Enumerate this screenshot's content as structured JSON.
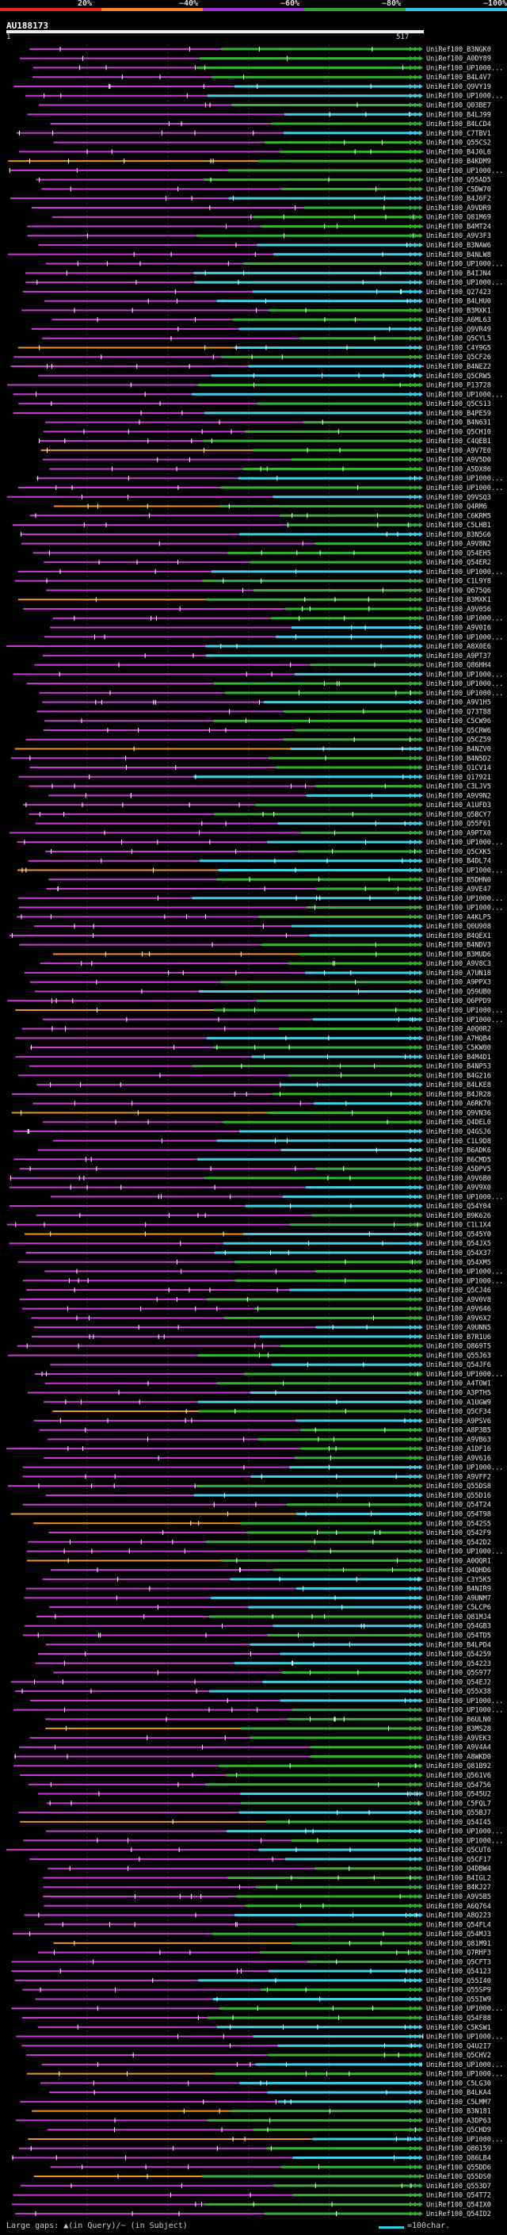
{
  "scale": {
    "labels": [
      "20%",
      "~40%",
      "~60%",
      "~80%",
      "~100%"
    ],
    "colors": [
      "#e8261f",
      "#f28a1b",
      "#9b32c9",
      "#27a33a",
      "#29c5e6"
    ]
  },
  "query": {
    "title": "AU188173",
    "start": "1",
    "end": "517"
  },
  "identity_colors": {
    "lt40": "#f0931f",
    "40_60": "#c93ad8",
    "60_80": "#33b32f",
    "gt80": "#3fd0e6"
  },
  "footer": {
    "gaps_label": "Large gaps: ▲(in Query)/~ (in Subject)",
    "scale_label": "=100char."
  },
  "hits": [
    "UniRef100_B3NGK0",
    "UniRef100_A0DY89",
    "UniRef100_UP1000...",
    "UniRef100_B4L4V7",
    "UniRef100_Q9VY19",
    "UniRef100_UP1000...",
    "UniRef100_Q03BE7",
    "UniRef100_B4LJ99",
    "UniRef100_B4LCD4",
    "UniRef100_C7TBV1",
    "UniRef100_Q55CS2",
    "UniRef100_B4J0L6",
    "UniRef100_B4KDM9",
    "UniRef100_UP1000...",
    "UniRef100_Q55AD5",
    "UniRef100_C5DW70",
    "UniRef100_B4J6F2",
    "UniRef100_A9VDR9",
    "UniRef100_Q81M69",
    "UniRef100_B4MT24",
    "UniRef100_A9V3F3",
    "UniRef100_B3NAW6",
    "UniRef100_B4NLW8",
    "UniRef100_UP1000...",
    "UniRef100_B4IJN4",
    "UniRef100_UP1000...",
    "UniRef100_Q27423",
    "UniRef100_B4LHU0",
    "UniRef100_B3MXK1",
    "UniRef100_A6ML63",
    "UniRef100_Q9VR49",
    "UniRef100_Q5CYL5",
    "UniRef100_C4Y9G5",
    "UniRef100_Q5CF26",
    "UniRef100_B4NEZ2",
    "UniRef100_Q5CRW5",
    "UniRef100_P13728",
    "UniRef100_UP1000...",
    "UniRef100_Q5CS13",
    "UniRef100_B4PE59",
    "UniRef100_B4N631",
    "UniRef100_Q5CH10",
    "UniRef100_C4QEB1",
    "UniRef100_A9V7E0",
    "UniRef100_A9V5D0",
    "UniRef100_A5DX86",
    "UniRef100_UP1000...",
    "UniRef100_UP1000...",
    "UniRef100_Q9VSQ3",
    "UniRef100_Q4RM6",
    "UniRef100_C6KRM5",
    "UniRef100_C5LHB1",
    "UniRef100_B3N5G6",
    "UniRef100_A9V8N2",
    "UniRef100_Q54EH5",
    "UniRef100_Q54ER2",
    "UniRef100_UP1000...",
    "UniRef100_C1L9Y8",
    "UniRef100_Q675Q6",
    "UniRef100_B3MXK1",
    "UniRef100_A9V056",
    "UniRef100_UP1000...",
    "UniRef100_A9V0I6",
    "UniRef100_UP1000...",
    "UniRef100_A8X0E6",
    "UniRef100_A9PT37",
    "UniRef100_Q86HH4",
    "UniRef100_UP1000...",
    "UniRef100_UP1000...",
    "UniRef100_UP1000...",
    "UniRef100_A9V1H5",
    "UniRef100_Q73T88",
    "UniRef100_C5CW96",
    "UniRef100_Q5CRW6",
    "UniRef100_Q5CZ59",
    "UniRef100_B4NZV0",
    "UniRef100_B4N5D2",
    "UniRef100_Q1CV14",
    "UniRef100_Q17921",
    "UniRef100_C3LJV5",
    "UniRef100_A9V9N2",
    "UniRef100_A1UFD3",
    "UniRef100_Q5BCY7",
    "UniRef100_Q55F61",
    "UniRef100_A9PTX0",
    "UniRef100_UP1000...",
    "UniRef100_Q5CXK5",
    "UniRef100_B4DL74",
    "UniRef100_UP1000...",
    "UniRef100_B5DHN0",
    "UniRef100_A9VE47",
    "UniRef100_UP1000...",
    "UniRef100_UP1000...",
    "UniRef100_A4KLP5",
    "UniRef100_Q0U908",
    "UniRef100_B4QEX1",
    "UniRef100_B4NDV3",
    "UniRef100_B3MUD6",
    "UniRef100_A9V8C3",
    "UniRef100_A7UN18",
    "UniRef100_A9PPX3",
    "UniRef100_Q59UB0",
    "UniRef100_Q6PPD9",
    "UniRef100_UP1000...",
    "UniRef100_UP1000...",
    "UniRef100_A0Q0R2",
    "UniRef100_A7HQB4",
    "UniRef100_C5KW00",
    "UniRef100_B4M4D1",
    "UniRef100_B4NP53",
    "UniRef100_B4G216",
    "UniRef100_B4LKE8",
    "UniRef100_B4JR28",
    "UniRef100_A6RK70",
    "UniRef100_Q9VN36",
    "UniRef100_Q4DEL0",
    "UniRef100_Q4GSJ6",
    "UniRef100_C1L9D8",
    "UniRef100_B6ADK6",
    "UniRef100_B6CMD5",
    "UniRef100_A5DPV5",
    "UniRef100_A9V6B0",
    "UniRef100_A9V9X0",
    "UniRef100_UP1000...",
    "UniRef100_Q54Y04",
    "UniRef100_B9K626",
    "UniRef100_C1L1X4",
    "UniRef100_Q545Y0",
    "UniRef100_Q54JX5",
    "UniRef100_Q54X37",
    "UniRef100_Q54XM5",
    "UniRef100_UP1000...",
    "UniRef100_UP1000...",
    "UniRef100_Q5CJ46",
    "UniRef100_A9V0V8",
    "UniRef100_A9V646",
    "UniRef100_A9V6X2",
    "UniRef100_A9UNN5",
    "UniRef100_B7R1U6",
    "UniRef100_Q869T5",
    "UniRef100_Q55J63",
    "UniRef100_Q54JF6",
    "UniRef100_UP1000...",
    "UniRef100_A4TOW1",
    "UniRef100_A3PTH5",
    "UniRef100_A1UGW9",
    "UniRef100_Q5CF34",
    "UniRef100_A9PSV6",
    "UniRef100_A8P3B5",
    "UniRef100_A9VB63",
    "UniRef100_A1DF16",
    "UniRef100_A9V616",
    "UniRef100_UP1000...",
    "UniRef100_A9VFF2",
    "UniRef100_Q55DS8",
    "UniRef100_Q55D16",
    "UniRef100_Q54T24",
    "UniRef100_Q54T98",
    "UniRef100_Q542S5",
    "UniRef100_Q542F9",
    "UniRef100_Q542D2",
    "UniRef100_UP1000...",
    "UniRef100_A0QQR1",
    "UniRef100_Q4QHD6",
    "UniRef100_C3Y5K5",
    "UniRef100_B4NIR9",
    "UniRef100_A9UNM7",
    "UniRef100_C5LCP6",
    "UniRef100_Q81MJ4",
    "UniRef100_Q54GB3",
    "UniRef100_Q54TD5",
    "UniRef100_B4LPD4",
    "UniRef100_Q54259",
    "UniRef100_Q54223",
    "UniRef100_Q5S977",
    "UniRef100_Q54EJ2",
    "UniRef100_Q55X38",
    "UniRef100_UP1000...",
    "UniRef100_UP1000...",
    "UniRef100_B6ULN0",
    "UniRef100_B3MS28",
    "UniRef100_A9VEK3",
    "UniRef100_A9V4A4",
    "UniRef100_A8WKD0",
    "UniRef100_Q81B92",
    "UniRef100_Q561V6",
    "UniRef100_Q54756",
    "UniRef100_Q545U2",
    "UniRef100_C5FQL7",
    "UniRef100_Q55BJ7",
    "UniRef100_Q54I45",
    "UniRef100_UP1000...",
    "UniRef100_UP1000...",
    "UniRef100_Q5CUT6",
    "UniRef100_Q5CF17",
    "UniRef100_Q4DBW4",
    "UniRef100_B4IGL2",
    "UniRef100_B4KJ27",
    "UniRef100_A9V5B5",
    "UniRef100_A6Q764",
    "UniRef100_A8Q223",
    "UniRef100_Q54FL4",
    "UniRef100_Q54MJ3",
    "UniRef100_Q81M91",
    "UniRef100_Q7RHF3",
    "UniRef100_Q5CFT3",
    "UniRef100_Q54123",
    "UniRef100_Q55I40",
    "UniRef100_Q55SP9",
    "UniRef100_Q55IW9",
    "UniRef100_UP1000...",
    "UniRef100_Q54F88",
    "UniRef100_C5KSW1",
    "UniRef100_UP1000...",
    "UniRef100_Q4U2I7",
    "UniRef100_Q5CHV2",
    "UniRef100_UP1000...",
    "UniRef100_UP1000...",
    "UniRef100_C5LG30",
    "UniRef100_B4LKA4",
    "UniRef100_C5LMM7",
    "UniRef100_B3N181",
    "UniRef100_A3DP63",
    "UniRef100_Q5CHD9",
    "UniRef100_UP1000...",
    "UniRef100_Q86159",
    "UniRef100_Q86LB4",
    "UniRef100_Q55DD6",
    "UniRef100_Q55DS0",
    "UniRef100_Q553D7",
    "UniRef100_Q54T72",
    "UniRef100_Q54IX0",
    "UniRef100_Q54ID2"
  ]
}
